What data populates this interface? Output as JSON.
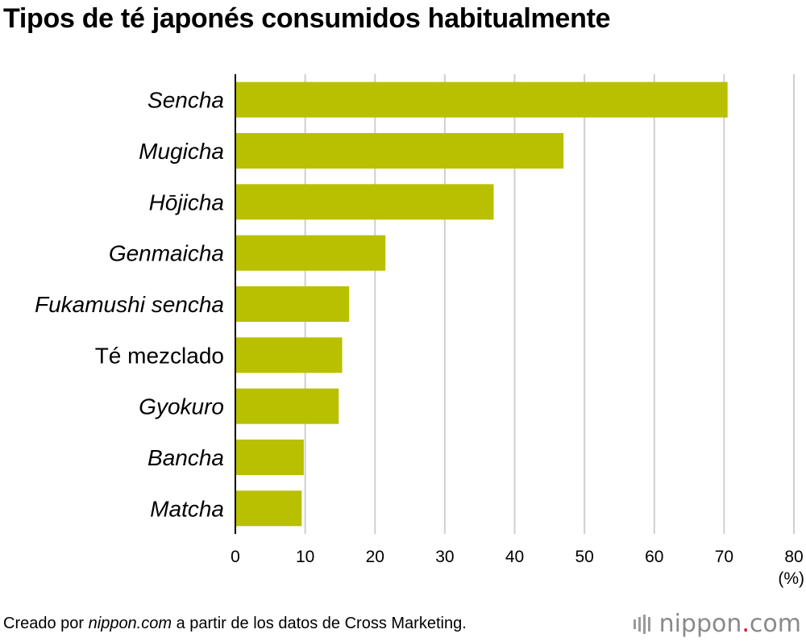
{
  "title": "Tipos de té japonés consumidos habitualmente",
  "footer": {
    "prefix": "Creado por ",
    "source_italic": "nippon.com",
    "suffix": " a partir de los datos de Cross Marketing.",
    "logo_left": "nippon",
    "logo_dot": ".",
    "logo_right": "com"
  },
  "colors": {
    "bar": "#b9c000",
    "grid": "#cfcfcf",
    "axis": "#000000"
  },
  "chart_data": {
    "type": "bar",
    "orientation": "horizontal",
    "categories": [
      "Sencha",
      "Mugicha",
      "Hōjicha",
      "Genmaicha",
      "Fukamushi sencha",
      "Té mezclado",
      "Gyokuro",
      "Bancha",
      "Matcha"
    ],
    "italic_categories": [
      true,
      true,
      true,
      true,
      true,
      false,
      true,
      true,
      true
    ],
    "values": [
      70.5,
      47.0,
      37.0,
      21.5,
      16.3,
      15.3,
      14.8,
      9.8,
      9.5
    ],
    "xlim": [
      0,
      80
    ],
    "xticks": [
      0,
      10,
      20,
      30,
      40,
      50,
      60,
      70,
      80
    ],
    "xunit": "(%)",
    "grid": true
  }
}
